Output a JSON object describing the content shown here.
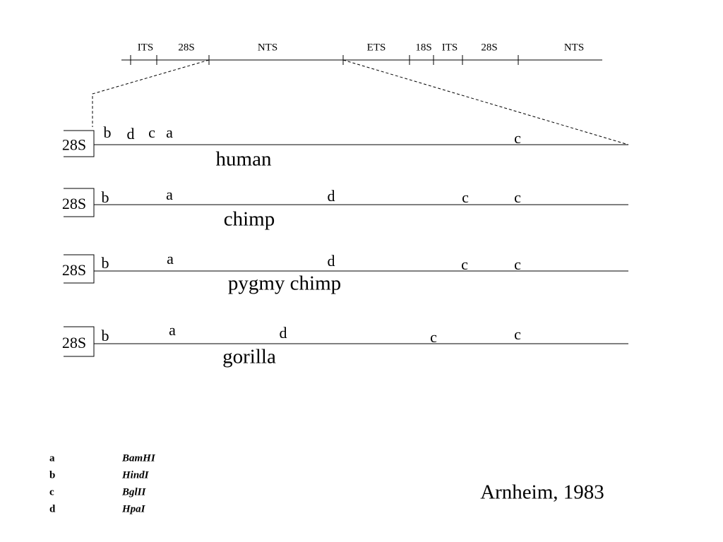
{
  "top_map": {
    "labels": [
      "ITS",
      "28S",
      "NTS",
      "ETS",
      "18S",
      "ITS",
      "28S",
      "NTS"
    ]
  },
  "rows": [
    {
      "box": "28S",
      "species": "human",
      "sites": [
        "b",
        "d",
        "c",
        "a",
        "c"
      ]
    },
    {
      "box": "28S",
      "species": "chimp",
      "sites": [
        "b",
        "a",
        "d",
        "c",
        "c"
      ]
    },
    {
      "box": "28S",
      "species": "pygmy chimp",
      "sites": [
        "b",
        "a",
        "d",
        "c",
        "c"
      ]
    },
    {
      "box": "28S",
      "species": "gorilla",
      "sites": [
        "b",
        "a",
        "d",
        "c",
        "c"
      ]
    }
  ],
  "legend": [
    {
      "key": "a",
      "enzyme": "BamHI"
    },
    {
      "key": "b",
      "enzyme": "HindI"
    },
    {
      "key": "c",
      "enzyme": "BglII"
    },
    {
      "key": "d",
      "enzyme": "HpaI"
    }
  ],
  "citation": "Arnheim, 1983"
}
